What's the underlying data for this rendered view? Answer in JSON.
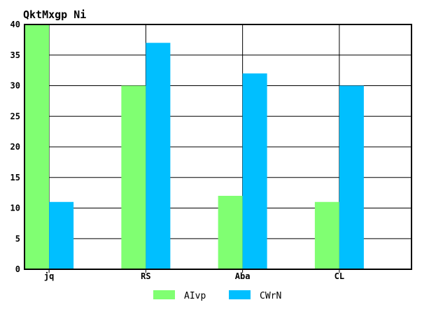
{
  "chart_data": {
    "type": "bar",
    "title": "QktMxgp Ni",
    "xlabel": "",
    "ylabel": "",
    "categories": [
      "jq",
      "RS",
      "Aba",
      "CL"
    ],
    "series": [
      {
        "name": "AIvp",
        "values": [
          40,
          30,
          12,
          11
        ],
        "color": "#80ff72"
      },
      {
        "name": "CWrN",
        "values": [
          11,
          37,
          32,
          30
        ],
        "color": "#00bfff"
      }
    ],
    "ylim": [
      0,
      40
    ],
    "yticks": [
      0,
      5,
      10,
      15,
      20,
      25,
      30,
      35,
      40
    ],
    "grid": true,
    "legend_position": "bottom-center"
  }
}
